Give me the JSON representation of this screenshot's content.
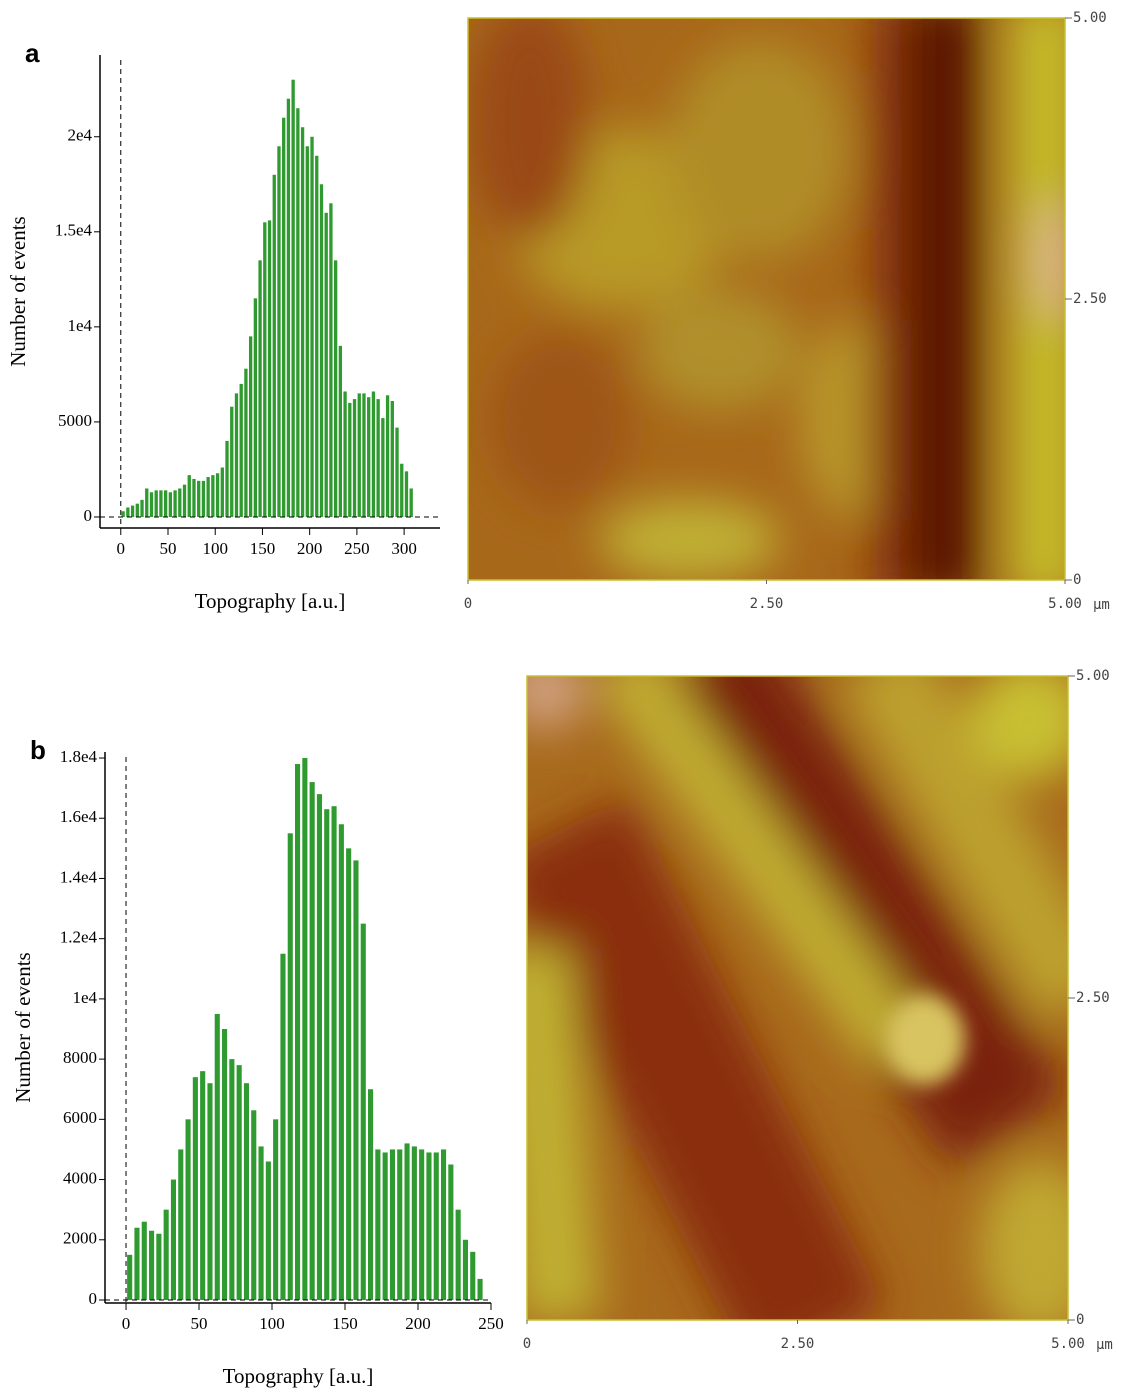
{
  "chart_data": [
    {
      "type": "histogram",
      "panel_label": "a",
      "xlabel": "Topography [a.u.]",
      "ylabel": "Number of events",
      "color": "#2f9a2f",
      "bins": [
        0,
        5,
        10,
        15,
        20,
        25,
        30,
        35,
        40,
        45,
        50,
        55,
        60,
        65,
        70,
        75,
        80,
        85,
        90,
        95,
        100,
        105,
        110,
        115,
        120,
        125,
        130,
        135,
        140,
        145,
        150,
        155,
        160,
        165,
        170,
        175,
        180,
        185,
        190,
        195,
        200,
        205,
        210,
        215,
        220,
        225,
        230,
        235,
        240,
        245,
        250,
        255,
        260,
        265,
        270,
        275,
        280,
        285,
        290,
        295,
        300,
        305,
        310
      ],
      "values": [
        300,
        500,
        600,
        700,
        900,
        1500,
        1300,
        1400,
        1400,
        1400,
        1300,
        1400,
        1500,
        1700,
        2200,
        2000,
        1900,
        1900,
        2100,
        2200,
        2300,
        2600,
        4000,
        5800,
        6500,
        7000,
        7800,
        9500,
        11500,
        13500,
        15500,
        15600,
        18000,
        19500,
        21000,
        22000,
        23000,
        21500,
        20500,
        19500,
        20000,
        19000,
        17500,
        16000,
        16500,
        13500,
        9000,
        6600,
        6000,
        6200,
        6500,
        6500,
        6300,
        6600,
        6200,
        5200,
        6400,
        6100,
        4700,
        2800,
        2400,
        1500
      ],
      "xlim": [
        -22,
        338
      ],
      "ylim": [
        -580,
        24300
      ],
      "xticks": [
        0,
        50,
        100,
        150,
        200,
        250,
        300
      ],
      "yticks": [
        0,
        5000,
        {
          "value": 10000,
          "label": "1e4"
        },
        {
          "value": 15000,
          "label": "1.5e4"
        },
        {
          "value": 20000,
          "label": "2e4"
        }
      ]
    },
    {
      "type": "image",
      "xlim": [
        0,
        5
      ],
      "ylim": [
        0,
        5
      ],
      "x_unit": "µm",
      "xticks": [
        0,
        {
          "value": 2.5,
          "label": "2.50"
        },
        {
          "value": 5,
          "label": "5.00"
        }
      ],
      "yticks": [
        0,
        {
          "value": 2.5,
          "label": "2.50"
        },
        {
          "value": 5,
          "label": "5.00"
        }
      ]
    },
    {
      "type": "histogram",
      "panel_label": "b",
      "xlabel": "Topography [a.u.]",
      "ylabel": "Number of events",
      "color": "#2f9a2f",
      "bins": [
        0,
        5,
        10,
        15,
        20,
        25,
        30,
        35,
        40,
        45,
        50,
        55,
        60,
        65,
        70,
        75,
        80,
        85,
        90,
        95,
        100,
        105,
        110,
        115,
        120,
        125,
        130,
        135,
        140,
        145,
        150,
        155,
        160,
        165,
        170,
        175,
        180,
        185,
        190,
        195,
        200,
        205,
        210,
        215,
        220,
        225,
        230,
        235,
        240,
        245
      ],
      "values": [
        1500,
        2400,
        2600,
        2300,
        2200,
        3000,
        4000,
        5000,
        6000,
        7400,
        7600,
        7200,
        9500,
        9000,
        8000,
        7800,
        7200,
        6300,
        5100,
        4600,
        6000,
        11500,
        15500,
        17800,
        18000,
        17200,
        16800,
        16300,
        16400,
        15800,
        15000,
        14600,
        12500,
        7000,
        5000,
        4900,
        5000,
        5000,
        5200,
        5100,
        5000,
        4900,
        4900,
        5000,
        4500,
        3000,
        2000,
        1600,
        700
      ],
      "xlim": [
        -14.4,
        250
      ],
      "ylim": [
        -100,
        18200
      ],
      "xticks": [
        0,
        50,
        100,
        150,
        200,
        250
      ],
      "yticks": [
        0,
        2000,
        4000,
        6000,
        8000,
        {
          "value": 10000,
          "label": "1e4"
        },
        {
          "value": 12000,
          "label": "1.2e4"
        },
        {
          "value": 14000,
          "label": "1.4e4"
        },
        {
          "value": 16000,
          "label": "1.6e4"
        },
        {
          "value": 18000,
          "label": "1.8e4"
        }
      ]
    },
    {
      "type": "image",
      "xlim": [
        0,
        5
      ],
      "ylim": [
        0,
        5
      ],
      "x_unit": "µm",
      "xticks": [
        0,
        {
          "value": 2.5,
          "label": "2.50"
        },
        {
          "value": 5,
          "label": "5.00"
        }
      ],
      "yticks": [
        0,
        {
          "value": 2.5,
          "label": "2.50"
        },
        {
          "value": 5,
          "label": "5.00"
        }
      ]
    }
  ]
}
